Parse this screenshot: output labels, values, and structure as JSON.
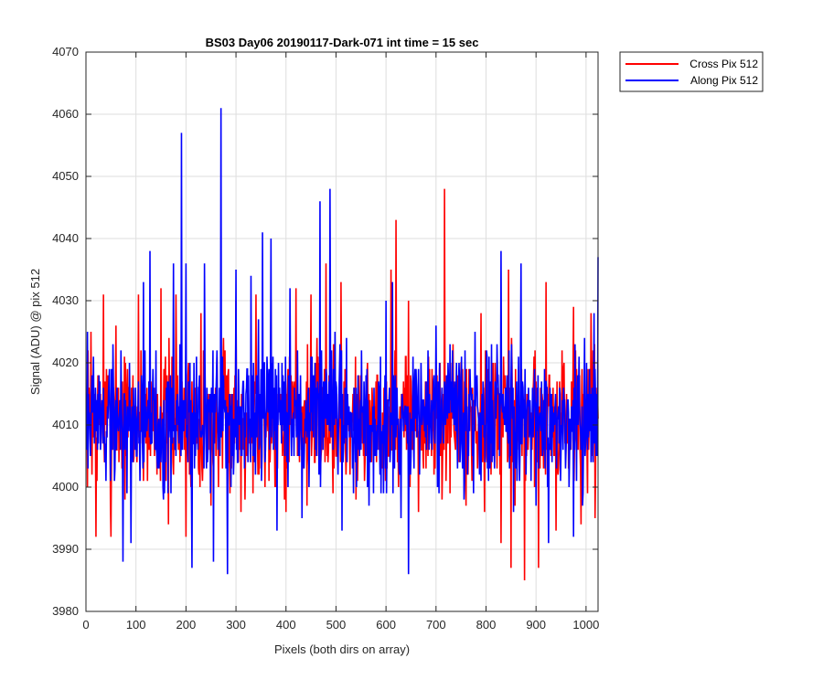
{
  "chart_data": {
    "type": "line",
    "title": "BS03 Day06 20190117-Dark-071 int time = 15 sec",
    "xlabel": "Pixels (both dirs on array)",
    "ylabel": "Signal (ADU) @ pix 512",
    "xlim": [
      0,
      1024
    ],
    "ylim": [
      3980,
      4070
    ],
    "x_ticks": [
      0,
      100,
      200,
      300,
      400,
      500,
      600,
      700,
      800,
      900,
      1000
    ],
    "y_ticks": [
      3980,
      3990,
      4000,
      4010,
      4020,
      4030,
      4040,
      4050,
      4060,
      4070
    ],
    "grid": true,
    "legend_location": "outside top-right",
    "series": [
      {
        "name": "Cross Pix 512",
        "color": "#ff0000",
        "x_start": 1,
        "x_step": 1,
        "noise_center": 4011,
        "noise_spread": 6.5,
        "seed": 7,
        "extremes": [
          {
            "x": 10,
            "y": 4025
          },
          {
            "x": 20,
            "y": 3992
          },
          {
            "x": 35,
            "y": 4031
          },
          {
            "x": 50,
            "y": 3992
          },
          {
            "x": 60,
            "y": 4026
          },
          {
            "x": 105,
            "y": 4031
          },
          {
            "x": 150,
            "y": 4032
          },
          {
            "x": 165,
            "y": 3994
          },
          {
            "x": 180,
            "y": 4031
          },
          {
            "x": 200,
            "y": 3992
          },
          {
            "x": 230,
            "y": 4028
          },
          {
            "x": 250,
            "y": 3997
          },
          {
            "x": 300,
            "y": 4030
          },
          {
            "x": 310,
            "y": 3996
          },
          {
            "x": 340,
            "y": 4031
          },
          {
            "x": 370,
            "y": 4030
          },
          {
            "x": 400,
            "y": 3996
          },
          {
            "x": 420,
            "y": 4032
          },
          {
            "x": 450,
            "y": 4031
          },
          {
            "x": 480,
            "y": 4036
          },
          {
            "x": 510,
            "y": 4033
          },
          {
            "x": 540,
            "y": 3998
          },
          {
            "x": 610,
            "y": 4035
          },
          {
            "x": 620,
            "y": 4043
          },
          {
            "x": 645,
            "y": 4030
          },
          {
            "x": 665,
            "y": 3996
          },
          {
            "x": 717,
            "y": 4048
          },
          {
            "x": 760,
            "y": 3997
          },
          {
            "x": 790,
            "y": 4028
          },
          {
            "x": 830,
            "y": 3991
          },
          {
            "x": 845,
            "y": 4035
          },
          {
            "x": 850,
            "y": 3987
          },
          {
            "x": 877,
            "y": 3985
          },
          {
            "x": 905,
            "y": 3987
          },
          {
            "x": 920,
            "y": 4033
          },
          {
            "x": 940,
            "y": 3993
          },
          {
            "x": 975,
            "y": 4029
          },
          {
            "x": 990,
            "y": 3994
          },
          {
            "x": 1010,
            "y": 4028
          },
          {
            "x": 1018,
            "y": 3995
          }
        ]
      },
      {
        "name": "Along Pix 512",
        "color": "#0000ff",
        "x_start": 1,
        "x_step": 1,
        "noise_center": 4011,
        "noise_spread": 6.5,
        "seed": 19,
        "extremes": [
          {
            "x": 3,
            "y": 4025
          },
          {
            "x": 15,
            "y": 4021
          },
          {
            "x": 40,
            "y": 4001
          },
          {
            "x": 74,
            "y": 3988
          },
          {
            "x": 90,
            "y": 3991
          },
          {
            "x": 115,
            "y": 4033
          },
          {
            "x": 128,
            "y": 4038
          },
          {
            "x": 155,
            "y": 3998
          },
          {
            "x": 175,
            "y": 4036
          },
          {
            "x": 191,
            "y": 4057
          },
          {
            "x": 200,
            "y": 4036
          },
          {
            "x": 212,
            "y": 3987
          },
          {
            "x": 237,
            "y": 4036
          },
          {
            "x": 255,
            "y": 3988
          },
          {
            "x": 270,
            "y": 4061
          },
          {
            "x": 283,
            "y": 3986
          },
          {
            "x": 300,
            "y": 4035
          },
          {
            "x": 330,
            "y": 4034
          },
          {
            "x": 345,
            "y": 4027
          },
          {
            "x": 353,
            "y": 4041
          },
          {
            "x": 370,
            "y": 4040
          },
          {
            "x": 382,
            "y": 3993
          },
          {
            "x": 408,
            "y": 4032
          },
          {
            "x": 432,
            "y": 3995
          },
          {
            "x": 468,
            "y": 4046
          },
          {
            "x": 488,
            "y": 4048
          },
          {
            "x": 512,
            "y": 3993
          },
          {
            "x": 535,
            "y": 3999
          },
          {
            "x": 575,
            "y": 3999
          },
          {
            "x": 600,
            "y": 4030
          },
          {
            "x": 613,
            "y": 4033
          },
          {
            "x": 630,
            "y": 3995
          },
          {
            "x": 645,
            "y": 3986
          },
          {
            "x": 700,
            "y": 4026
          },
          {
            "x": 775,
            "y": 3999
          },
          {
            "x": 830,
            "y": 4038
          },
          {
            "x": 855,
            "y": 3996
          },
          {
            "x": 870,
            "y": 4036
          },
          {
            "x": 925,
            "y": 3991
          },
          {
            "x": 975,
            "y": 3992
          },
          {
            "x": 1016,
            "y": 4028
          },
          {
            "x": 1024,
            "y": 4037
          }
        ]
      }
    ]
  }
}
